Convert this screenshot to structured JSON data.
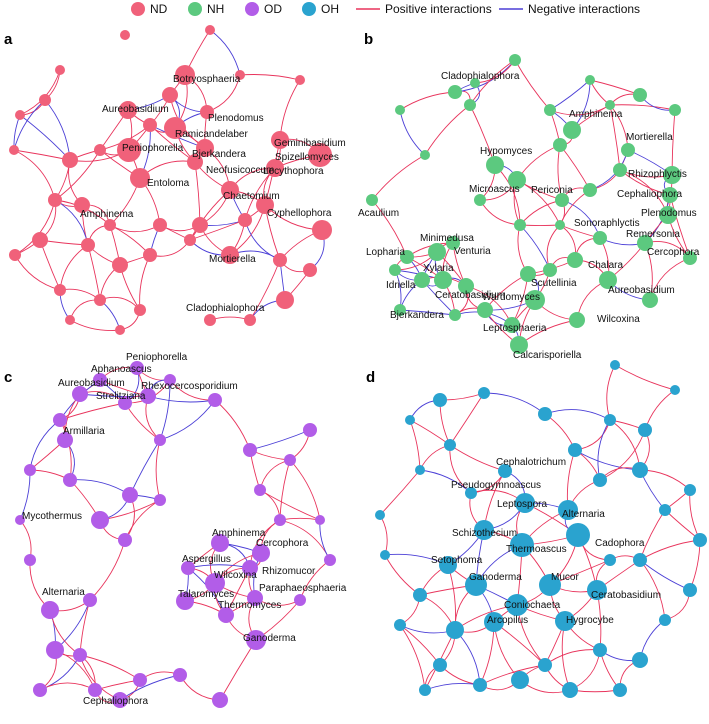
{
  "legend": {
    "groups": [
      {
        "label": "ND",
        "color": "#f0617a"
      },
      {
        "label": "NH",
        "color": "#5cc97f"
      },
      {
        "label": "OD",
        "color": "#b25de8"
      },
      {
        "label": "OH",
        "color": "#2aa3cf"
      }
    ],
    "positive_label": "Positive interactions",
    "negative_label": "Negative interactions",
    "positive_color": "#e8345c",
    "negative_color": "#4b3fd6"
  },
  "panels": [
    {
      "letter": "a",
      "color": "#f0617a",
      "labels": [
        "Botryosphaeria",
        "Aureobasidium",
        "Plenodomus",
        "Ramicandelaber",
        "Peniophorella",
        "Geminibasidium",
        "Spizellomyces",
        "Bjerkandera",
        "Neofusicoccum",
        "Entoloma",
        "Lecythophora",
        "Chaetomium",
        "Amphinema",
        "Cyphellophora",
        "Mortierella",
        "Cladophialophora"
      ]
    },
    {
      "letter": "b",
      "color": "#5cc97f",
      "labels": [
        "Cladophialophora",
        "Amphinema",
        "Mortierella",
        "Hypomyces",
        "Rhizophlyctis",
        "Cephaliophora",
        "Microascus",
        "Periconia",
        "Acaulium",
        "Plenodomus",
        "Sonoraphlyctis",
        "Remersonia",
        "Minimedusa",
        "Lopharia",
        "Venturia",
        "Xylaria",
        "Cercophora",
        "Chalara",
        "Idriella",
        "Ceratobasidium",
        "Scutellinia",
        "Wardomyces",
        "Aureobasidium",
        "Bjerkandera",
        "Leptosphaeria",
        "Wilcoxina",
        "Calcarisporiella"
      ]
    },
    {
      "letter": "c",
      "color": "#b25de8",
      "labels": [
        "Peniophorella",
        "Aphanoascus",
        "Aureobasidium",
        "Rhexocercosporidium",
        "Strelitziana",
        "Armillaria",
        "Mycothermus",
        "Amphinema",
        "Cercophora",
        "Aspergillus",
        "Rhizomucor",
        "Wilcoxina",
        "Paraphaeosphaeria",
        "Talaromyces",
        "Thermomyces",
        "Alternaria",
        "Ganoderma",
        "Cephaliophora"
      ]
    },
    {
      "letter": "d",
      "color": "#2aa3cf",
      "labels": [
        "Cephalotrichum",
        "Pseudogymnoascus",
        "Leptospora",
        "Alternaria",
        "Schizothecium",
        "Cadophora",
        "Thermoascus",
        "Setophoma",
        "Ganoderma",
        "Mucor",
        "Ceratobasidium",
        "Coniochaeta",
        "Arcopilus",
        "Hygrocybe"
      ]
    }
  ]
}
